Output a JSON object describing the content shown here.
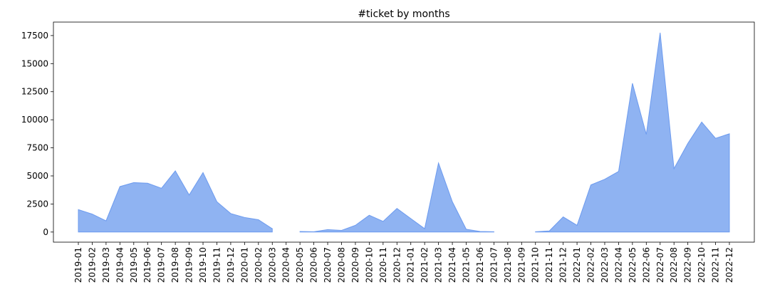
{
  "chart_data": {
    "type": "area",
    "title": "#ticket by months",
    "xlabel": "",
    "ylabel": "",
    "x": [
      "2019-01",
      "2019-02",
      "2019-03",
      "2019-04",
      "2019-05",
      "2019-06",
      "2019-07",
      "2019-08",
      "2019-09",
      "2019-10",
      "2019-11",
      "2019-12",
      "2020-01",
      "2020-02",
      "2020-03",
      "2020-04",
      "2020-05",
      "2020-06",
      "2020-07",
      "2020-08",
      "2020-09",
      "2020-10",
      "2020-11",
      "2020-12",
      "2021-01",
      "2021-02",
      "2021-03",
      "2021-04",
      "2021-05",
      "2021-06",
      "2021-07",
      "2021-08",
      "2021-09",
      "2021-10",
      "2021-11",
      "2021-12",
      "2022-01",
      "2022-02",
      "2022-03",
      "2022-04",
      "2022-05",
      "2022-06",
      "2022-07",
      "2022-08",
      "2022-09",
      "2022-10",
      "2022-11",
      "2022-12"
    ],
    "series": [
      {
        "values": [
          2000,
          1600,
          1000,
          4050,
          4400,
          4350,
          3900,
          5450,
          3300,
          5300,
          2700,
          1650,
          1300,
          1100,
          300,
          null,
          50,
          30,
          220,
          150,
          600,
          1500,
          950,
          2100,
          1200,
          300,
          6150,
          2700,
          250,
          50,
          30,
          null,
          null,
          30,
          100,
          1350,
          600,
          4200,
          4700,
          5400,
          13250,
          8700,
          17750,
          5650,
          7900,
          9800,
          8350,
          8750
        ],
        "color": "#6495ed"
      }
    ],
    "ylim": [
      -900,
      18700
    ],
    "yticks": [
      0,
      2500,
      5000,
      7500,
      10000,
      12500,
      15000,
      17500
    ],
    "ytick_labels": [
      "0",
      "2500",
      "5000",
      "7500",
      "10000",
      "12500",
      "15000",
      "17500"
    ],
    "grid": false,
    "legend": "none"
  }
}
